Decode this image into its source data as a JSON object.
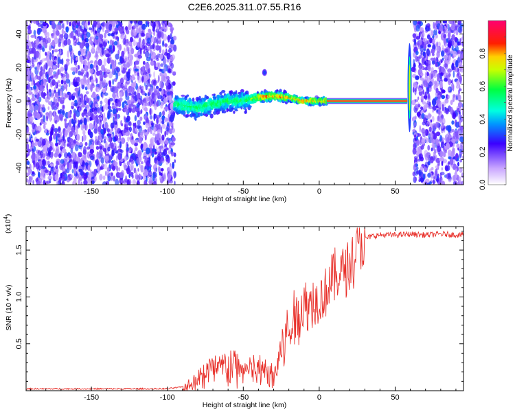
{
  "title": "C2E6.2025.311.07.55.R16",
  "chart_data": [
    {
      "type": "heatmap",
      "xlabel": "Height of straight line (km)",
      "ylabel": "Frequency (Hz)",
      "xlim": [
        -193,
        95
      ],
      "ylim": [
        -50,
        48
      ],
      "xticks": [
        "-150",
        "-100",
        "-50",
        "0",
        "50"
      ],
      "xtick_values": [
        -150,
        -100,
        -50,
        0,
        50
      ],
      "yticks": [
        "-40",
        "-20",
        "0",
        "20",
        "40"
      ],
      "ytick_values": [
        -40,
        -20,
        0,
        20,
        40
      ],
      "noise_regions": [
        [
          -193,
          -95
        ],
        [
          62,
          95
        ]
      ],
      "signal_track": [
        {
          "x": -95,
          "f": -2
        },
        {
          "x": -80,
          "f": -4
        },
        {
          "x": -70,
          "f": -2
        },
        {
          "x": -60,
          "f": 0
        },
        {
          "x": -50,
          "f": 0
        },
        {
          "x": -40,
          "f": 2
        },
        {
          "x": -30,
          "f": 3
        },
        {
          "x": -20,
          "f": 2
        },
        {
          "x": -10,
          "f": 0
        },
        {
          "x": 5,
          "f": 0
        },
        {
          "x": 58,
          "f": 0
        }
      ],
      "strong_band": [
        5,
        58
      ],
      "colorbar": {
        "label": "Normalized spectral amplitude",
        "ticks": [
          "0.0",
          "0.2",
          "0.4",
          "0.6",
          "0.8"
        ],
        "tick_values": [
          0.0,
          0.2,
          0.4,
          0.6,
          0.8
        ],
        "range": [
          0,
          1
        ]
      }
    },
    {
      "type": "line",
      "xlabel": "Height of straight line (km)",
      "ylabel": "SNR (10 * v/v)",
      "scale_label": "(x10",
      "scale_exponent": "4",
      "scale_close": ")",
      "xlim": [
        -193,
        95
      ],
      "ylim": [
        0,
        1.75
      ],
      "xticks": [
        "-150",
        "-100",
        "-50",
        "0",
        "50"
      ],
      "xtick_values": [
        -150,
        -100,
        -50,
        0,
        50
      ],
      "yticks": [
        "0.5",
        "1.0",
        "1.5"
      ],
      "ytick_values": [
        0.5,
        1.0,
        1.5
      ],
      "series": [
        {
          "name": "SNR",
          "color": "#e8302a",
          "x": [
            -193,
            -100,
            -90,
            -85,
            -80,
            -75,
            -70,
            -65,
            -60,
            -55,
            -50,
            -45,
            -40,
            -35,
            -30,
            -25,
            -20,
            -15,
            -10,
            -5,
            0,
            5,
            10,
            15,
            20,
            25,
            30,
            35,
            40,
            50,
            60,
            70,
            80,
            95
          ],
          "values": [
            0.02,
            0.02,
            0.04,
            0.1,
            0.16,
            0.22,
            0.25,
            0.27,
            0.27,
            0.28,
            0.25,
            0.24,
            0.23,
            0.22,
            0.2,
            0.45,
            0.68,
            0.82,
            0.95,
            0.98,
            1.0,
            1.12,
            1.25,
            1.3,
            1.4,
            1.55,
            1.62,
            1.65,
            1.66,
            1.66,
            1.67,
            1.66,
            1.67,
            1.66
          ]
        }
      ]
    }
  ]
}
